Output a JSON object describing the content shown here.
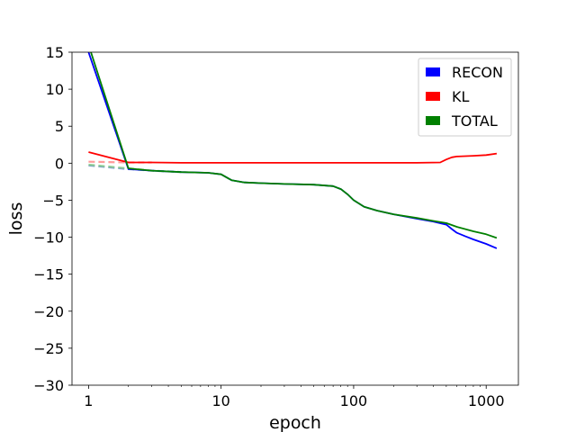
{
  "chart_data": {
    "type": "line",
    "xscale": "log",
    "xlabel": "epoch",
    "ylabel": "loss",
    "xlim": [
      0.75,
      1750
    ],
    "ylim": [
      -30,
      15
    ],
    "xticks": [
      1,
      10,
      100,
      1000
    ],
    "xtick_labels": [
      "1",
      "10",
      "100",
      "1000"
    ],
    "yticks": [
      15,
      10,
      5,
      0,
      -5,
      -10,
      -15,
      -20,
      -25,
      -30
    ],
    "ytick_labels": [
      "15",
      "10",
      "5",
      "0",
      "−5",
      "−10",
      "−15",
      "−20",
      "−25",
      "−30"
    ],
    "grid": false,
    "legend_position": "top-right",
    "series": [
      {
        "name": "RECON",
        "color": "#0000ff",
        "val_color": "#6688cc",
        "x": [
          1,
          2,
          3,
          5,
          8,
          10,
          12,
          15,
          20,
          30,
          50,
          70,
          80,
          90,
          100,
          120,
          150,
          200,
          300,
          400,
          500,
          550,
          600,
          700,
          800,
          1000,
          1200
        ],
        "y": [
          15,
          -0.8,
          -1.0,
          -1.2,
          -1.3,
          -1.5,
          -2.3,
          -2.6,
          -2.7,
          -2.8,
          -2.9,
          -3.1,
          -3.5,
          -4.2,
          -5.0,
          -5.9,
          -6.4,
          -6.9,
          -7.5,
          -7.9,
          -8.3,
          -8.9,
          -9.4,
          -9.9,
          -10.3,
          -10.9,
          -11.5
        ],
        "val_x": [
          1,
          2,
          3,
          5
        ],
        "val_y": [
          -0.3,
          -0.8,
          -1.0,
          -1.2
        ]
      },
      {
        "name": "KL",
        "color": "#ff0000",
        "val_color": "#ff8888",
        "x": [
          1,
          2,
          3,
          5,
          10,
          20,
          50,
          100,
          200,
          300,
          450,
          500,
          550,
          600,
          800,
          1000,
          1200
        ],
        "y": [
          1.5,
          0.1,
          0.1,
          0.05,
          0.05,
          0.05,
          0.05,
          0.05,
          0.05,
          0.05,
          0.1,
          0.5,
          0.8,
          0.9,
          1.0,
          1.1,
          1.3
        ],
        "val_x": [
          1,
          2,
          3
        ],
        "val_y": [
          0.2,
          0.1,
          0.1
        ]
      },
      {
        "name": "TOTAL",
        "color": "#008000",
        "val_color": "#88cc88",
        "x": [
          1,
          2,
          3,
          5,
          8,
          10,
          12,
          15,
          20,
          30,
          50,
          70,
          80,
          90,
          100,
          120,
          150,
          200,
          300,
          400,
          500,
          600,
          800,
          1000,
          1200
        ],
        "y": [
          16,
          -0.7,
          -1.0,
          -1.2,
          -1.3,
          -1.5,
          -2.3,
          -2.6,
          -2.7,
          -2.8,
          -2.9,
          -3.1,
          -3.5,
          -4.2,
          -5.0,
          -5.9,
          -6.4,
          -6.9,
          -7.4,
          -7.8,
          -8.1,
          -8.6,
          -9.2,
          -9.6,
          -10.1
        ],
        "val_x": [
          1,
          2,
          3,
          5
        ],
        "val_y": [
          -0.2,
          -0.7,
          -1.0,
          -1.2
        ]
      }
    ]
  }
}
